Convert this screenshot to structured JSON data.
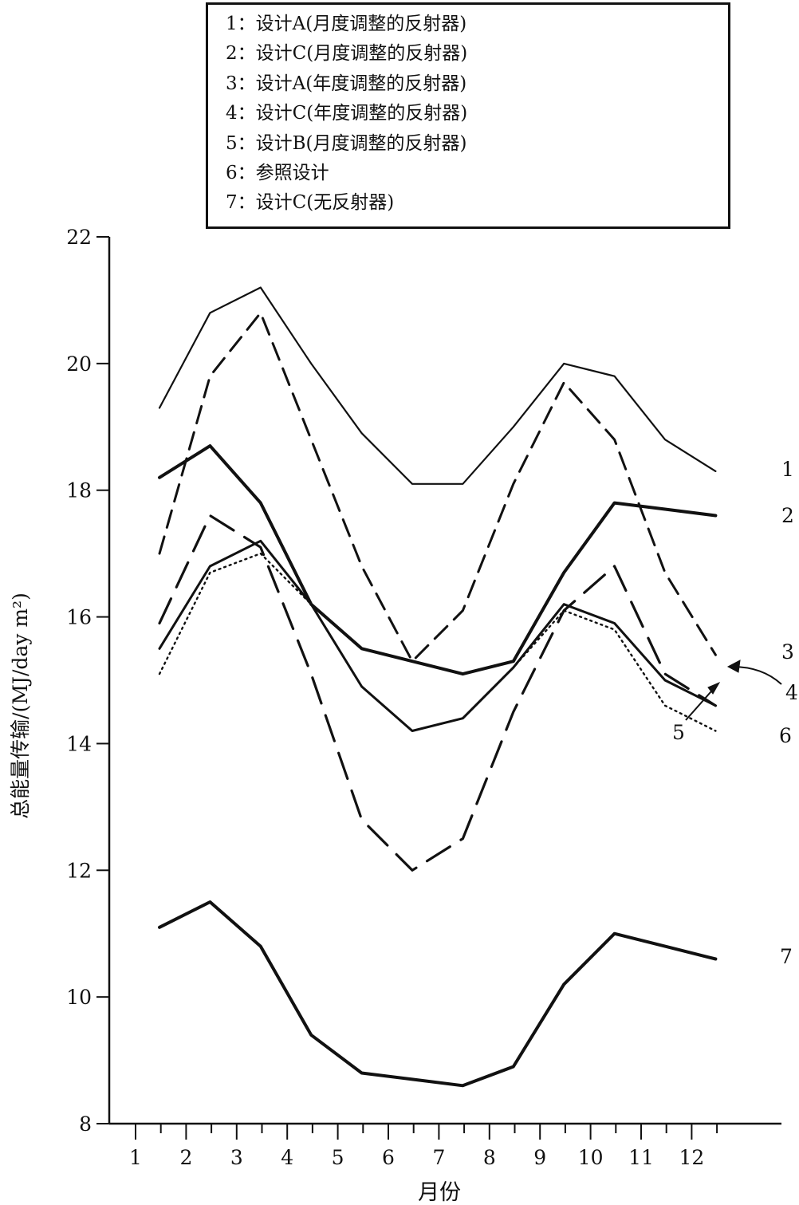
{
  "chart_data": {
    "type": "line",
    "title": "",
    "xlabel": "月份",
    "ylabel": "总能量传输/(MJ/day m²)",
    "xlim": [
      0.5,
      12.5
    ],
    "ylim": [
      8,
      22
    ],
    "x_ticks": [
      "1",
      "2",
      "3",
      "4",
      "5",
      "6",
      "7",
      "8",
      "9",
      "10",
      "11",
      "12"
    ],
    "y_ticks": [
      "8",
      "10",
      "12",
      "14",
      "16",
      "18",
      "20",
      "22"
    ],
    "grid": false,
    "legend_position": "top",
    "x": [
      1,
      2,
      3,
      4,
      5,
      6,
      7,
      8,
      9,
      10,
      11,
      12
    ],
    "series": [
      {
        "name": "1：设计A(月度调整的反射器)",
        "label": "1",
        "style": "solid-thin",
        "values": [
          19.3,
          20.8,
          21.2,
          20.0,
          18.9,
          18.1,
          18.1,
          19.0,
          20.0,
          19.8,
          18.8,
          18.3
        ]
      },
      {
        "name": "2：设计C(月度调整的反射器)",
        "label": "2",
        "style": "solid-thick",
        "values": [
          18.2,
          18.7,
          17.8,
          16.2,
          15.5,
          15.3,
          15.1,
          15.3,
          16.7,
          17.8,
          17.7,
          17.6
        ]
      },
      {
        "name": "3：设计A(年度调整的反射器)",
        "label": "3",
        "style": "dashed",
        "values": [
          17.0,
          19.8,
          20.8,
          18.8,
          16.8,
          15.3,
          16.1,
          18.1,
          19.7,
          18.8,
          16.7,
          15.4
        ]
      },
      {
        "name": "4：设计C(年度调整的反射器)",
        "label": "4",
        "style": "long-dashed",
        "values": [
          15.9,
          17.6,
          17.1,
          15.1,
          12.8,
          12.0,
          12.5,
          14.5,
          16.1,
          16.8,
          15.1,
          14.6
        ]
      },
      {
        "name": "5：设计B(月度调整的反射器)",
        "label": "5",
        "style": "solid-medium",
        "values": [
          15.5,
          16.8,
          17.2,
          16.2,
          14.9,
          14.2,
          14.4,
          15.2,
          16.2,
          15.9,
          15.0,
          14.6
        ]
      },
      {
        "name": "6：参照设计",
        "label": "6",
        "style": "dotted",
        "values": [
          15.1,
          16.7,
          17.0,
          16.2,
          14.9,
          14.2,
          14.4,
          15.2,
          16.1,
          15.8,
          14.6,
          14.2
        ]
      },
      {
        "name": "7：设计C(无反射器)",
        "label": "7",
        "style": "solid-thick",
        "values": [
          11.1,
          11.5,
          10.8,
          9.4,
          8.8,
          8.7,
          8.6,
          8.9,
          10.2,
          11.0,
          10.8,
          10.6
        ]
      }
    ],
    "colors": {
      "line": "#111111",
      "background": "#ffffff"
    }
  }
}
